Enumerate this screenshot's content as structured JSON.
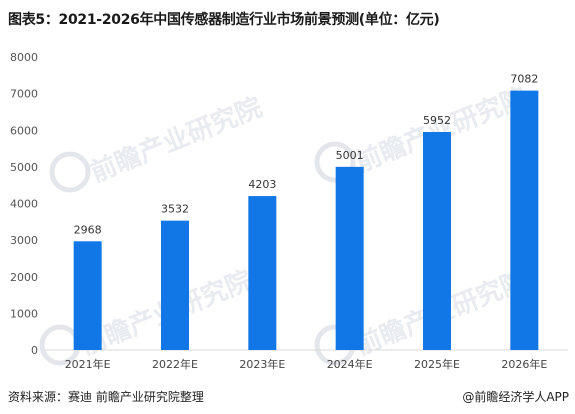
{
  "title": "图表5：2021-2026年中国传感器制造行业市场前景预测(单位：亿元)",
  "footer": {
    "source": "资料来源：赛迪 前瞻产业研究院整理",
    "brand": "@前瞻经济学人APP"
  },
  "watermark": {
    "text": "前瞻产业研究院"
  },
  "chart_data": {
    "type": "bar",
    "title": "图表5：2021-2026年中国传感器制造行业市场前景预测(单位：亿元)",
    "xlabel": "",
    "ylabel": "",
    "categories": [
      "2021年E",
      "2022年E",
      "2023年E",
      "2024年E",
      "2025年E",
      "2026年E"
    ],
    "values": [
      2968,
      3532,
      4203,
      5001,
      5952,
      7082
    ],
    "ylim": [
      0,
      8000
    ],
    "yticks": [
      0,
      1000,
      2000,
      3000,
      4000,
      5000,
      6000,
      7000,
      8000
    ],
    "bar_color": "#1177e6",
    "grid": false,
    "legend": "none"
  }
}
